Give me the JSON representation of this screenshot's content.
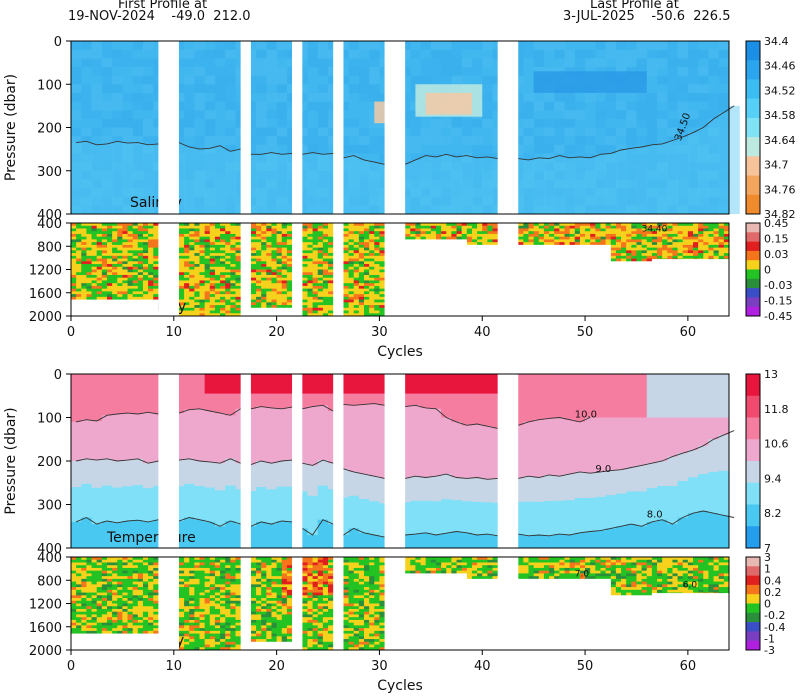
{
  "header": {
    "first_label": "First Profile at",
    "first_info": "19-NOV-2024    -49.0  212.0",
    "last_label": "Last Profile at",
    "last_info": "3-JUL-2025    -50.6  226.5"
  },
  "x_axis": {
    "label": "Cycles",
    "ticks": [
      0,
      10,
      20,
      30,
      40,
      50,
      60
    ],
    "range": [
      0,
      64
    ]
  },
  "profile_gaps": [
    [
      8.5,
      10.5
    ],
    [
      16.5,
      17.5
    ],
    [
      21.5,
      22.5
    ],
    [
      25.5,
      26.5
    ],
    [
      30.5,
      32.5
    ],
    [
      41.5,
      43.5
    ]
  ],
  "anomaly_coverage": [
    {
      "from": 0,
      "to": 8.5,
      "depth": 1700
    },
    {
      "from": 10.5,
      "to": 16.5,
      "depth": 2000
    },
    {
      "from": 17.5,
      "to": 21.5,
      "depth": 1850
    },
    {
      "from": 22.5,
      "to": 25.5,
      "depth": 2000
    },
    {
      "from": 26.5,
      "to": 30.5,
      "depth": 2000
    },
    {
      "from": 32.5,
      "to": 38.5,
      "depth": 600
    },
    {
      "from": 38.5,
      "to": 41.5,
      "depth": 700
    },
    {
      "from": 43.5,
      "to": 52.5,
      "depth": 700
    },
    {
      "from": 52.5,
      "to": 56.5,
      "depth": 1000
    },
    {
      "from": 56.5,
      "to": 64,
      "depth": 960
    }
  ],
  "chart_data": [
    {
      "type": "heatmap",
      "name": "salinity",
      "inset_label": "Salinity",
      "ylabel": "Pressure (dbar)",
      "y_range": [
        0,
        400
      ],
      "y_ticks": [
        "0",
        "100",
        "200",
        "300",
        "400"
      ],
      "colorbar": [
        "34.4",
        "34.46",
        "34.52",
        "34.58",
        "34.64",
        "34.7",
        "34.76",
        "34.82"
      ],
      "colorbar_colors": [
        "#1b8fe6",
        "#2aa5ee",
        "#3bbdf3",
        "#56d0f6",
        "#7fe3f5",
        "#bde9e0",
        "#f6c39b",
        "#f3a55e",
        "#ef8a2d"
      ],
      "background": "#3fb4ee",
      "contour_label": "34.50",
      "contour_depth_dbar": [
        235,
        232,
        240,
        238,
        232,
        236,
        235,
        240,
        238,
        240,
        235,
        245,
        250,
        248,
        242,
        255,
        250,
        262,
        262,
        258,
        262,
        260,
        262,
        258,
        262,
        260,
        270,
        265,
        275,
        280,
        285,
        290,
        285,
        275,
        265,
        268,
        262,
        268,
        265,
        270,
        268,
        272,
        270,
        272,
        275,
        270,
        272,
        265,
        270,
        268,
        270,
        262,
        260,
        252,
        248,
        245,
        240,
        238,
        230,
        222,
        212,
        200,
        180,
        165,
        150
      ]
    },
    {
      "type": "heatmap",
      "name": "salinity-anomaly",
      "inset_label": "S. Anomaly",
      "y_range": [
        300,
        2000
      ],
      "y_ticks": [
        "400",
        "800",
        "1200",
        "1600",
        "2000"
      ],
      "colorbar": [
        "0.45",
        "0.15",
        "0.03",
        "0",
        "-0.03",
        "-0.15",
        "-0.45"
      ],
      "colorbar_colors": [
        "#e7b9b2",
        "#e06a6a",
        "#e01f1f",
        "#f5751c",
        "#f6d21c",
        "#22c322",
        "#2a8f3a",
        "#3a4ec8",
        "#7a3ec0",
        "#b020e0"
      ],
      "contour_label": "34.40"
    },
    {
      "type": "heatmap",
      "name": "temperature",
      "inset_label": "Temperature",
      "ylabel": "Pressure (dbar)",
      "y_range": [
        0,
        400
      ],
      "y_ticks": [
        "0",
        "100",
        "200",
        "300",
        "400"
      ],
      "colorbar": [
        "13",
        "11.8",
        "10.6",
        "9.4",
        "8.2",
        "7"
      ],
      "colorbar_colors": [
        "#e8153d",
        "#f04a6e",
        "#f47da0",
        "#efa8cd",
        "#c7d6e6",
        "#7fe0f7",
        "#49c9f2",
        "#259ded"
      ],
      "contour_labels": [
        "10.0",
        "9.0",
        "8.0"
      ],
      "contour_depth_dbar": {
        "t10": [
          110,
          105,
          108,
          95,
          92,
          90,
          92,
          88,
          92,
          88,
          90,
          82,
          80,
          85,
          90,
          95,
          80,
          80,
          75,
          78,
          80,
          76,
          80,
          75,
          72,
          85,
          70,
          72,
          70,
          68,
          72,
          70,
          75,
          72,
          78,
          80,
          100,
          110,
          118,
          115,
          120,
          125,
          120,
          118,
          110,
          105,
          102,
          100,
          105,
          110,
          100
        ],
        "t9": [
          200,
          195,
          198,
          195,
          200,
          198,
          195,
          205,
          200,
          205,
          198,
          195,
          200,
          202,
          205,
          195,
          205,
          208,
          200,
          205,
          200,
          198,
          205,
          210,
          198,
          205,
          218,
          225,
          230,
          235,
          240,
          245,
          240,
          235,
          238,
          235,
          230,
          238,
          240,
          238,
          242,
          240,
          238,
          240,
          235,
          238,
          232,
          235,
          230,
          225,
          228,
          225,
          222,
          220,
          215,
          210,
          205,
          200,
          190,
          182,
          175,
          165,
          150,
          140,
          130
        ],
        "t8": [
          340,
          330,
          345,
          338,
          342,
          338,
          336,
          340,
          335,
          340,
          338,
          330,
          335,
          340,
          350,
          338,
          345,
          350,
          340,
          345,
          338,
          340,
          355,
          370,
          335,
          345,
          370,
          355,
          365,
          370,
          375,
          372,
          370,
          368,
          365,
          370,
          366,
          362,
          365,
          370,
          368,
          372,
          370,
          368,
          372,
          370,
          372,
          368,
          370,
          365,
          362,
          360,
          355,
          350,
          345,
          350,
          340,
          335,
          345,
          330,
          320,
          315,
          320,
          325,
          330
        ]
      }
    },
    {
      "type": "heatmap",
      "name": "temperature-anomaly",
      "inset_label": "T. Anomaly",
      "y_range": [
        300,
        2000
      ],
      "y_ticks": [
        "400",
        "800",
        "1200",
        "1600",
        "2000"
      ],
      "colorbar": [
        "3",
        "1",
        "0.4",
        "0.2",
        "0",
        "-0.2",
        "-0.4",
        "-1",
        "-3"
      ],
      "colorbar_colors": [
        "#e7b9b2",
        "#e06a6a",
        "#e01f1f",
        "#f5751c",
        "#f6d21c",
        "#22c322",
        "#2a8f3a",
        "#3a4ec8",
        "#7a3ec0",
        "#b020e0"
      ],
      "contour_labels": [
        "7.0",
        "6.0"
      ]
    }
  ]
}
